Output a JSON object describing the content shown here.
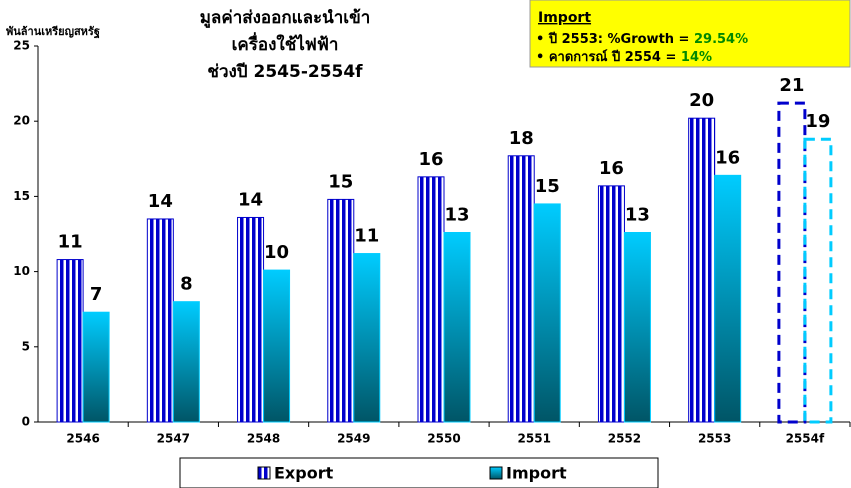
{
  "chart_data": {
    "type": "bar",
    "title": [
      "มูลค่าส่งออกและนำเข้า",
      "เครื่องใช้ไฟฟ้า",
      "ช่วงปี 2545-2554f"
    ],
    "y_label": "พันล้านเหรียญสหรัฐ",
    "categories": [
      "2546",
      "2547",
      "2548",
      "2549",
      "2550",
      "2551",
      "2552",
      "2553",
      "2554f"
    ],
    "series": [
      {
        "name": "Export",
        "color": "#0000cc",
        "pattern": "stripes",
        "values": [
          10.8,
          13.5,
          13.6,
          14.8,
          16.3,
          17.7,
          15.7,
          20.2,
          21.2
        ],
        "value_labels": [
          "11",
          "14",
          "14",
          "15",
          "16",
          "18",
          "16",
          "20",
          "21"
        ]
      },
      {
        "name": "Import",
        "color": "#00ccff",
        "pattern": "gradient",
        "values": [
          7.3,
          8.0,
          10.1,
          11.2,
          12.6,
          14.5,
          12.6,
          16.4,
          18.8
        ],
        "value_labels": [
          "7",
          "8",
          "10",
          "11",
          "13",
          "15",
          "13",
          "16",
          "19"
        ]
      }
    ],
    "dashed_points": [
      8
    ],
    "ylim": [
      0,
      25
    ],
    "yticks": [
      0,
      5,
      10,
      15,
      20,
      25
    ],
    "legend": "bottom",
    "annotation": {
      "heading": "Import",
      "lines": [
        {
          "text": "• ปี 2553: %Growth = ",
          "highlight": "29.54%"
        },
        {
          "text": "• คาดการณ์ ปี 2554 = ",
          "highlight": "14%"
        }
      ]
    }
  }
}
